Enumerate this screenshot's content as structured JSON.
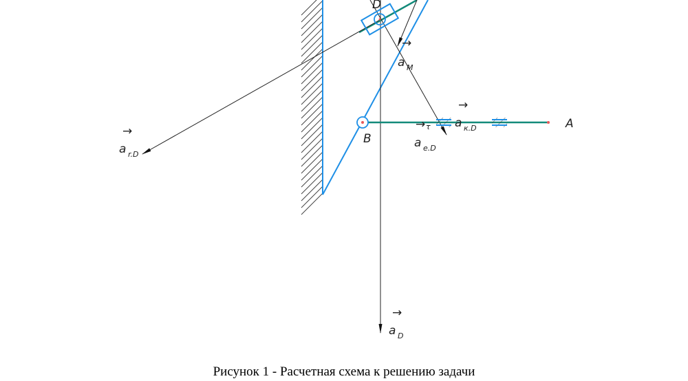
{
  "figure": {
    "caption": "Рисунок 1 - Расчетная схема к решению задачи",
    "points": {
      "A": "A",
      "B": "B",
      "D": "D"
    },
    "vectors": {
      "a_M": {
        "base": "a",
        "sub": "M"
      },
      "a_kD": {
        "base": "a",
        "sub": "к.D"
      },
      "a_eD_tau": {
        "base": "a",
        "sub": "e.D",
        "sup": "τ"
      },
      "a_rD": {
        "base": "a",
        "sub": "r.D"
      },
      "a_D": {
        "base": "a",
        "sub": "D"
      }
    },
    "colors": {
      "link": "#1e8fe6",
      "rod": "#138a7a",
      "vector": "#222222",
      "joint": "#e85a5a"
    }
  }
}
